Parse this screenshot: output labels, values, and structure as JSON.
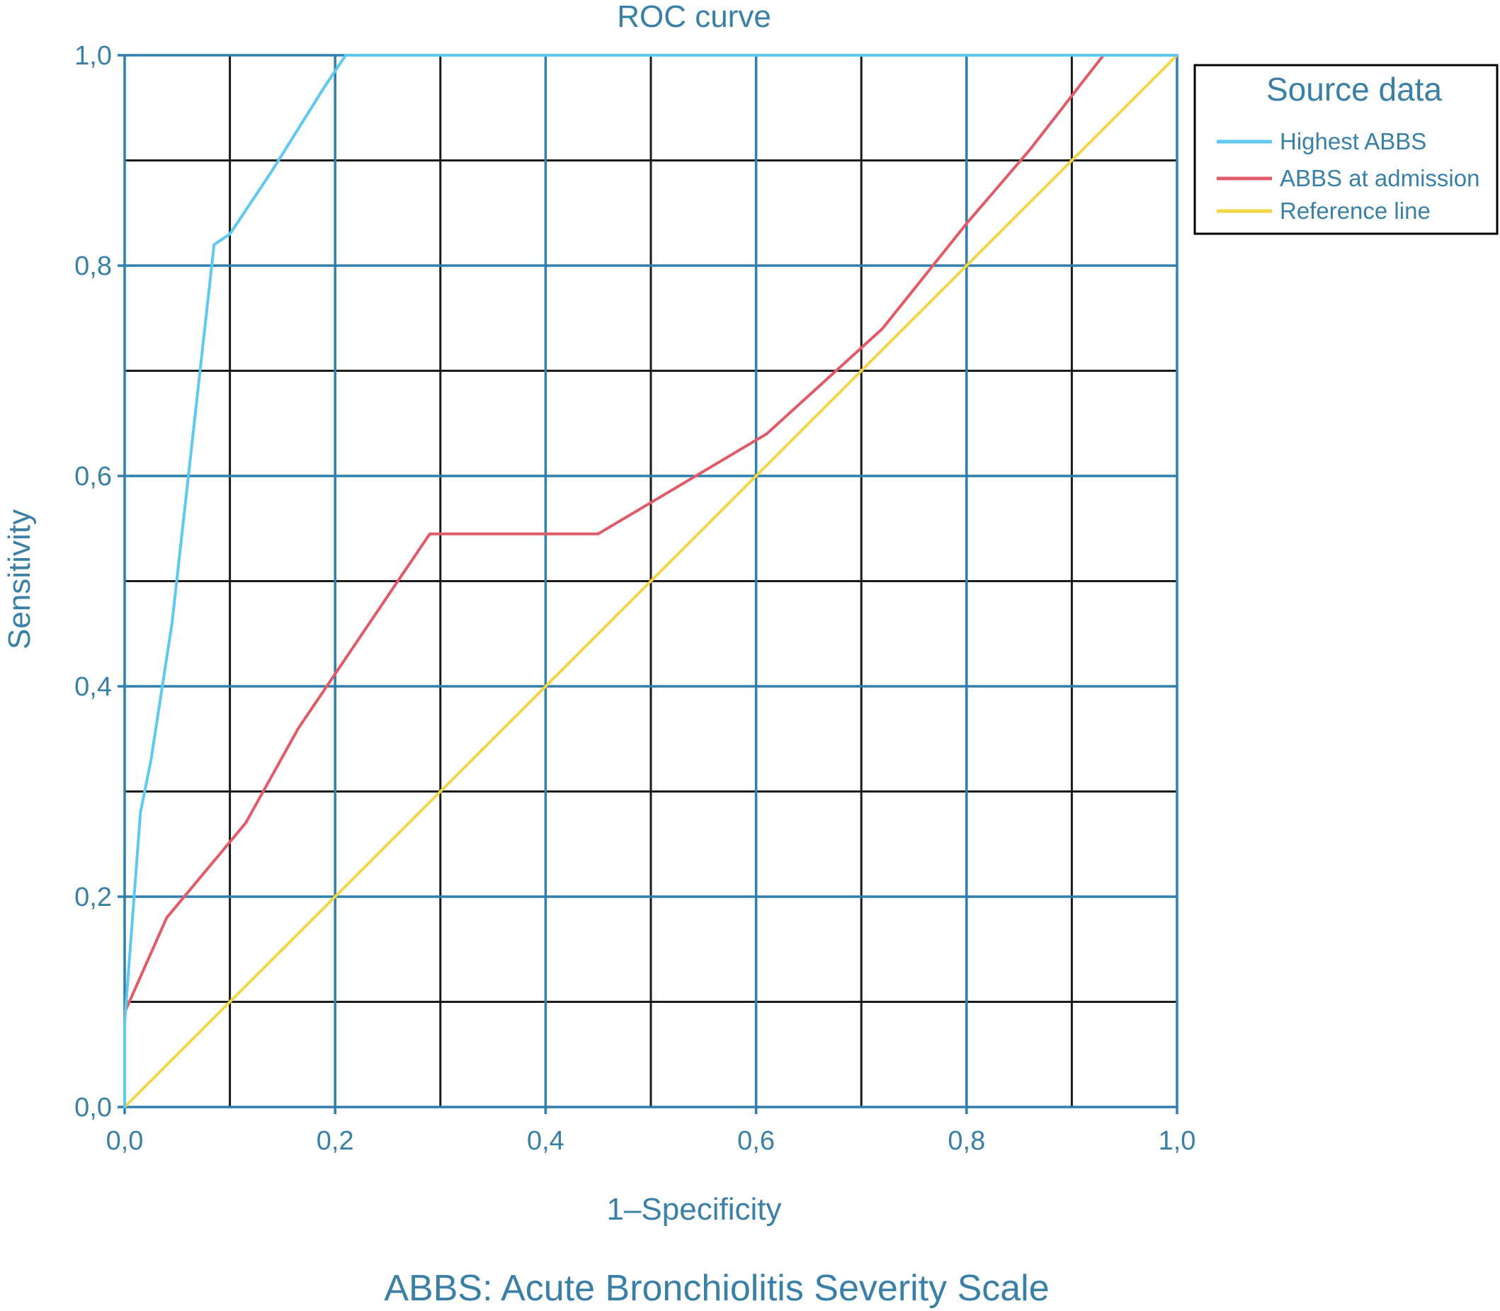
{
  "chart_data": {
    "type": "line",
    "title": "ROC curve",
    "xlabel": "1–Specificity",
    "ylabel": "Sensitivity",
    "footnote": "ABBS: Acute Bronchiolitis Severity Scale",
    "xlim": [
      0,
      1
    ],
    "ylim": [
      0,
      1
    ],
    "x_ticks": [
      0.0,
      0.2,
      0.4,
      0.6,
      0.8,
      1.0
    ],
    "y_ticks": [
      0.0,
      0.2,
      0.4,
      0.6,
      0.8,
      1.0
    ],
    "x_tick_labels": [
      "0,0",
      "0,2",
      "0,4",
      "0,6",
      "0,8",
      "1,0"
    ],
    "y_tick_labels": [
      "0,0",
      "0,2",
      "0,4",
      "0,6",
      "0,8",
      "1,0"
    ],
    "grid": true,
    "grid_colors": {
      "major": "#2e7fae",
      "minor": "#1a1a1a"
    },
    "text_color": "#3a7fa6",
    "legend": {
      "title": "Source data",
      "position": "top-right outside"
    },
    "series": [
      {
        "name": "Highest ABBS",
        "color": "#5ec8ef",
        "x": [
          0.0,
          0.0,
          0.015,
          0.025,
          0.045,
          0.065,
          0.085,
          0.1,
          0.14,
          0.19,
          0.21,
          1.0
        ],
        "y": [
          0.0,
          0.08,
          0.28,
          0.33,
          0.46,
          0.64,
          0.82,
          0.83,
          0.89,
          0.97,
          1.0,
          1.0
        ]
      },
      {
        "name": "ABBS at admission",
        "color": "#e05a68",
        "x": [
          0.0,
          0.0,
          0.04,
          0.115,
          0.165,
          0.29,
          0.45,
          0.61,
          0.72,
          0.8,
          0.86,
          0.93,
          1.0
        ],
        "y": [
          0.0,
          0.09,
          0.18,
          0.27,
          0.36,
          0.545,
          0.545,
          0.64,
          0.74,
          0.84,
          0.91,
          1.0,
          1.0
        ]
      },
      {
        "name": "Reference line",
        "color": "#f5d548",
        "x": [
          0.0,
          1.0
        ],
        "y": [
          0.0,
          1.0
        ]
      }
    ]
  }
}
